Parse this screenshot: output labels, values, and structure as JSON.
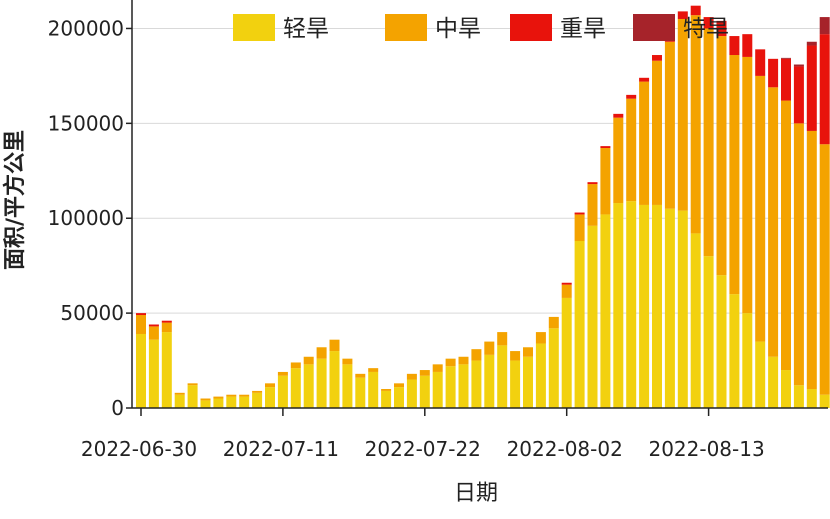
{
  "chart_data": {
    "type": "bar",
    "stacked": true,
    "xlabel": "日期",
    "ylabel": "面积/平方公里",
    "ylim": [
      0,
      215000
    ],
    "yticks": [
      0,
      50000,
      100000,
      150000,
      200000
    ],
    "xtick_labels": [
      "2022-06-30",
      "2022-07-11",
      "2022-07-22",
      "2022-08-02",
      "2022-08-13"
    ],
    "xtick_indices": [
      0,
      11,
      22,
      33,
      44
    ],
    "grid": true,
    "legend_position": "top",
    "categories": [
      "2022-06-30",
      "2022-07-01",
      "2022-07-02",
      "2022-07-03",
      "2022-07-04",
      "2022-07-05",
      "2022-07-06",
      "2022-07-07",
      "2022-07-08",
      "2022-07-09",
      "2022-07-10",
      "2022-07-11",
      "2022-07-12",
      "2022-07-13",
      "2022-07-14",
      "2022-07-15",
      "2022-07-16",
      "2022-07-17",
      "2022-07-18",
      "2022-07-19",
      "2022-07-20",
      "2022-07-21",
      "2022-07-22",
      "2022-07-23",
      "2022-07-24",
      "2022-07-25",
      "2022-07-26",
      "2022-07-27",
      "2022-07-28",
      "2022-07-29",
      "2022-07-30",
      "2022-07-31",
      "2022-08-01",
      "2022-08-02",
      "2022-08-03",
      "2022-08-04",
      "2022-08-05",
      "2022-08-06",
      "2022-08-07",
      "2022-08-08",
      "2022-08-09",
      "2022-08-10",
      "2022-08-11",
      "2022-08-12",
      "2022-08-13",
      "2022-08-14",
      "2022-08-15",
      "2022-08-16",
      "2022-08-17",
      "2022-08-18",
      "2022-08-19",
      "2022-08-20",
      "2022-08-21",
      "2022-08-22"
    ],
    "series": [
      {
        "name": "轻旱",
        "color": "#f2d10f",
        "values": [
          39000,
          36000,
          40000,
          7000,
          12000,
          4000,
          5000,
          6000,
          6000,
          8000,
          11000,
          17000,
          21000,
          23000,
          26000,
          30000,
          23000,
          16000,
          19000,
          9000,
          11000,
          15000,
          17000,
          19000,
          22000,
          23000,
          25000,
          28000,
          33000,
          25000,
          27000,
          34000,
          42000,
          58000,
          88000,
          96000,
          102000,
          108000,
          109000,
          107000,
          107000,
          105000,
          104000,
          92000,
          80000,
          70000,
          60000,
          50000,
          35000,
          27000,
          20000,
          12000,
          10000,
          7000
        ]
      },
      {
        "name": "中旱",
        "color": "#f4a300",
        "values": [
          10000,
          7000,
          5000,
          1000,
          1000,
          1000,
          1000,
          1000,
          1000,
          1000,
          2000,
          2000,
          3000,
          4000,
          6000,
          6000,
          3000,
          2000,
          2000,
          1000,
          2000,
          3000,
          3000,
          4000,
          4000,
          4000,
          6000,
          7000,
          7000,
          5000,
          5000,
          6000,
          6000,
          7000,
          14000,
          22000,
          35000,
          45000,
          54000,
          65000,
          76000,
          88000,
          101000,
          115000,
          120000,
          126000,
          126000,
          135000,
          140000,
          142000,
          142000,
          138000,
          136000,
          132000
        ]
      },
      {
        "name": "重旱",
        "color": "#e8130c",
        "values": [
          1000,
          1000,
          1000,
          0,
          0,
          0,
          0,
          0,
          0,
          0,
          0,
          0,
          0,
          0,
          0,
          0,
          0,
          0,
          0,
          0,
          0,
          0,
          0,
          0,
          0,
          0,
          0,
          0,
          0,
          0,
          0,
          0,
          0,
          1000,
          1000,
          1000,
          1000,
          2000,
          2000,
          2000,
          3000,
          3000,
          4000,
          5000,
          6000,
          8000,
          10000,
          12000,
          14000,
          15000,
          22000,
          30000,
          45000,
          58000
        ]
      },
      {
        "name": "特旱",
        "color": "#a6232a",
        "values": [
          0,
          0,
          0,
          0,
          0,
          0,
          0,
          0,
          0,
          0,
          0,
          0,
          0,
          0,
          0,
          0,
          0,
          0,
          0,
          0,
          0,
          0,
          0,
          0,
          0,
          0,
          0,
          0,
          0,
          0,
          0,
          0,
          0,
          0,
          0,
          0,
          0,
          0,
          0,
          0,
          0,
          0,
          0,
          0,
          0,
          0,
          0,
          0,
          0,
          0,
          500,
          1000,
          2000,
          9000
        ]
      }
    ]
  }
}
